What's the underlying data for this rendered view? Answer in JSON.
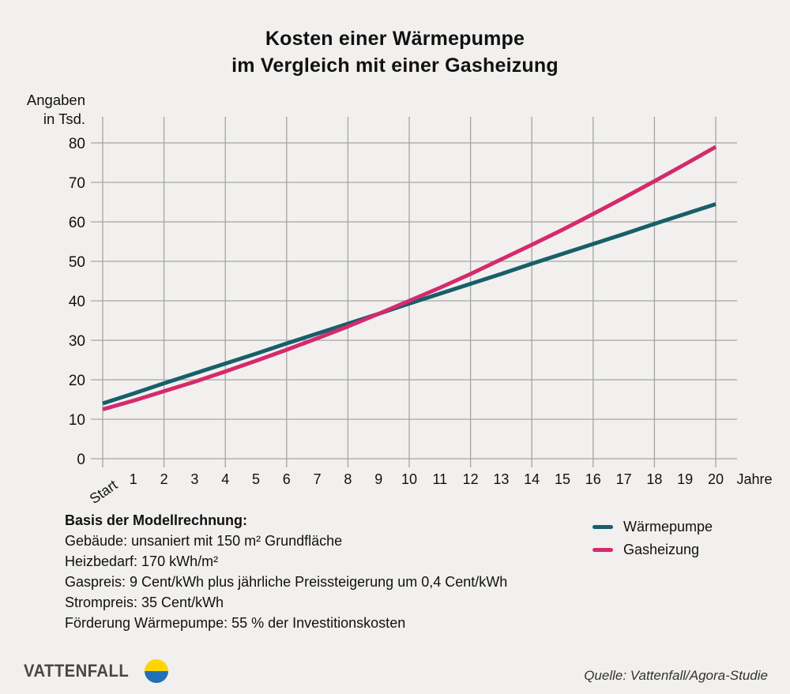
{
  "title": {
    "line1": "Kosten einer Wärmepumpe",
    "line2": "im Vergleich mit einer Gasheizung"
  },
  "chart_data": {
    "type": "line",
    "title": "Kosten einer Wärmepumpe im Vergleich mit einer Gasheizung",
    "y_axis_label": [
      "Angaben",
      "in Tsd."
    ],
    "x_axis_unit": "Jahre",
    "x_tick_labels": [
      "Start",
      "1",
      "2",
      "3",
      "4",
      "5",
      "6",
      "7",
      "8",
      "9",
      "10",
      "11",
      "12",
      "13",
      "14",
      "15",
      "16",
      "17",
      "18",
      "19",
      "20"
    ],
    "x_years": [
      0,
      1,
      2,
      3,
      4,
      5,
      6,
      7,
      8,
      9,
      10,
      11,
      12,
      13,
      14,
      15,
      16,
      17,
      18,
      19,
      20
    ],
    "y_ticks": [
      0,
      10,
      20,
      30,
      40,
      50,
      60,
      70,
      80
    ],
    "ylim": [
      0,
      80
    ],
    "grid": true,
    "grid_vertical_every_years": 2,
    "legend_position": "bottom-right",
    "series": [
      {
        "id": "waermepumpe",
        "name": "Wärmepumpe",
        "color": "#175f69",
        "values": [
          14.0,
          16.5,
          19.1,
          21.6,
          24.1,
          26.6,
          29.2,
          31.7,
          34.2,
          36.7,
          39.3,
          41.8,
          44.3,
          46.8,
          49.4,
          51.9,
          54.4,
          56.9,
          59.5,
          62.0,
          64.5
        ]
      },
      {
        "id": "gasheizung",
        "name": "Gasheizung",
        "color": "#d52a6d",
        "values": [
          12.5,
          14.7,
          17.1,
          19.5,
          22.1,
          24.8,
          27.6,
          30.5,
          33.5,
          36.7,
          40.0,
          43.3,
          46.8,
          50.5,
          54.2,
          58.0,
          62.0,
          66.1,
          70.3,
          74.6,
          79.0
        ]
      }
    ]
  },
  "notes": {
    "heading": "Basis der Modellrechnung:",
    "lines": [
      "Gebäude: unsaniert mit 150 m² Grundfläche",
      "Heizbedarf: 170 kWh/m²",
      "Gaspreis: 9 Cent/kWh plus jährliche Preissteigerung um 0,4 Cent/kWh",
      "Strompreis: 35 Cent/kWh",
      "Förderung Wärmepumpe: 55 % der Investitionskosten"
    ]
  },
  "footer": {
    "brand": "VATTENFALL",
    "source": "Quelle: Vattenfall/Agora-Studie"
  },
  "colors": {
    "background": "#f1f0ee",
    "grid": "#a5a5a5",
    "text": "#111111",
    "waermepumpe_line": "#175f69",
    "gasheizung_line": "#d52a6d",
    "brand_text": "#4c4641",
    "logo_yellow": "#ffd500",
    "logo_blue": "#2170b6"
  }
}
